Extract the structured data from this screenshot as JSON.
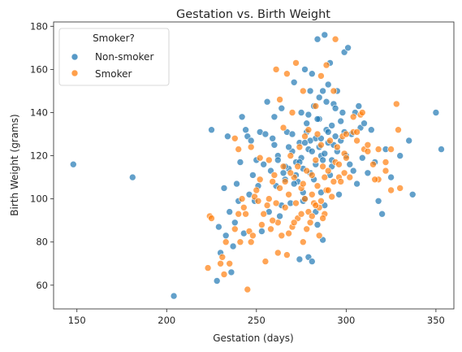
{
  "chart_data": {
    "type": "scatter",
    "title": "Gestation vs. Birth Weight",
    "xlabel": "Gestation (days)",
    "ylabel": "Birth Weight (grams)",
    "xlim": [
      137,
      360
    ],
    "ylim": [
      49,
      182
    ],
    "xticks": [
      150,
      200,
      250,
      300,
      350
    ],
    "yticks": [
      60,
      80,
      100,
      120,
      140,
      160,
      180
    ],
    "grid": false,
    "legend": {
      "title": "Smoker?",
      "placement": "top-left",
      "entries": [
        "Non-smoker",
        "Smoker"
      ]
    },
    "series": [
      {
        "name": "Non-smoker",
        "color": "#1f77b4",
        "points": [
          [
            148,
            116
          ],
          [
            181,
            110
          ],
          [
            204,
            55
          ],
          [
            225,
            132
          ],
          [
            228,
            62
          ],
          [
            229,
            87
          ],
          [
            230,
            75
          ],
          [
            232,
            105
          ],
          [
            233,
            83
          ],
          [
            234,
            129
          ],
          [
            235,
            94
          ],
          [
            236,
            66
          ],
          [
            237,
            78
          ],
          [
            238,
            89
          ],
          [
            239,
            107
          ],
          [
            240,
            99
          ],
          [
            241,
            117
          ],
          [
            242,
            138
          ],
          [
            243,
            84
          ],
          [
            244,
            132
          ],
          [
            245,
            129
          ],
          [
            246,
            102
          ],
          [
            247,
            127
          ],
          [
            248,
            111
          ],
          [
            249,
            99
          ],
          [
            250,
            118
          ],
          [
            251,
            106
          ],
          [
            252,
            131
          ],
          [
            253,
            85
          ],
          [
            254,
            116
          ],
          [
            255,
            130
          ],
          [
            256,
            145
          ],
          [
            257,
            94
          ],
          [
            258,
            113
          ],
          [
            259,
            128
          ],
          [
            260,
            138
          ],
          [
            261,
            106
          ],
          [
            262,
            120
          ],
          [
            263,
            92
          ],
          [
            264,
            142
          ],
          [
            265,
            112
          ],
          [
            266,
            109
          ],
          [
            267,
            131
          ],
          [
            268,
            114
          ],
          [
            269,
            98
          ],
          [
            270,
            122
          ],
          [
            271,
            154
          ],
          [
            272,
            117
          ],
          [
            273,
            108
          ],
          [
            274,
            126
          ],
          [
            275,
            140
          ],
          [
            276,
            103
          ],
          [
            277,
            160
          ],
          [
            278,
            135
          ],
          [
            279,
            123
          ],
          [
            280,
            112
          ],
          [
            281,
            158
          ],
          [
            282,
            143
          ],
          [
            283,
            128
          ],
          [
            284,
            174
          ],
          [
            285,
            137
          ],
          [
            286,
            120
          ],
          [
            287,
            150
          ],
          [
            288,
            176
          ],
          [
            289,
            132
          ],
          [
            290,
            126
          ],
          [
            291,
            163
          ],
          [
            292,
            115
          ],
          [
            293,
            144
          ],
          [
            294,
            129
          ],
          [
            295,
            150
          ],
          [
            296,
            102
          ],
          [
            297,
            127
          ],
          [
            298,
            140
          ],
          [
            299,
            168
          ],
          [
            300,
            120
          ],
          [
            301,
            170
          ],
          [
            302,
            116
          ],
          [
            303,
            130
          ],
          [
            304,
            113
          ],
          [
            305,
            140
          ],
          [
            306,
            107
          ],
          [
            307,
            143
          ],
          [
            308,
            133
          ],
          [
            309,
            119
          ],
          [
            310,
            135
          ],
          [
            312,
            112
          ],
          [
            314,
            132
          ],
          [
            316,
            117
          ],
          [
            318,
            99
          ],
          [
            320,
            93
          ],
          [
            322,
            123
          ],
          [
            325,
            110
          ],
          [
            330,
            120
          ],
          [
            335,
            127
          ],
          [
            337,
            102
          ],
          [
            350,
            140
          ],
          [
            353,
            123
          ],
          [
            275,
            119
          ],
          [
            280,
            127
          ],
          [
            285,
            124
          ],
          [
            290,
            131
          ],
          [
            283,
            116
          ],
          [
            278,
            131
          ],
          [
            287,
            118
          ],
          [
            292,
            134
          ],
          [
            276,
            114
          ],
          [
            284,
            137
          ],
          [
            288,
            121
          ],
          [
            282,
            109
          ],
          [
            279,
            139
          ],
          [
            286,
            128
          ],
          [
            291,
            111
          ],
          [
            277,
            126
          ],
          [
            289,
            145
          ],
          [
            281,
            122
          ],
          [
            274,
            117
          ],
          [
            293,
            125
          ],
          [
            270,
            130
          ],
          [
            295,
            122
          ],
          [
            272,
            111
          ],
          [
            297,
            136
          ],
          [
            268,
            124
          ],
          [
            299,
            131
          ],
          [
            266,
            115
          ],
          [
            285,
            147
          ],
          [
            280,
            150
          ],
          [
            290,
            153
          ],
          [
            276,
            99
          ],
          [
            286,
            103
          ],
          [
            279,
            73
          ],
          [
            281,
            71
          ],
          [
            287,
            81
          ],
          [
            283,
            94
          ],
          [
            274,
            72
          ],
          [
            277,
            100
          ],
          [
            292,
            118
          ],
          [
            294,
            142
          ],
          [
            271,
            107
          ],
          [
            264,
            97
          ],
          [
            262,
            118
          ],
          [
            260,
            125
          ],
          [
            284,
            88
          ],
          [
            288,
            97
          ]
        ]
      },
      {
        "name": "Smoker",
        "color": "#ff7f0e",
        "points": [
          [
            223,
            68
          ],
          [
            224,
            92
          ],
          [
            225,
            91
          ],
          [
            230,
            70
          ],
          [
            231,
            73
          ],
          [
            232,
            65
          ],
          [
            233,
            80
          ],
          [
            235,
            70
          ],
          [
            238,
            86
          ],
          [
            240,
            93
          ],
          [
            241,
            80
          ],
          [
            242,
            100
          ],
          [
            243,
            96
          ],
          [
            245,
            58
          ],
          [
            246,
            85
          ],
          [
            247,
            80
          ],
          [
            248,
            83
          ],
          [
            249,
            101
          ],
          [
            250,
            104
          ],
          [
            251,
            99
          ],
          [
            252,
            109
          ],
          [
            253,
            88
          ],
          [
            254,
            93
          ],
          [
            255,
            71
          ],
          [
            256,
            97
          ],
          [
            257,
            100
          ],
          [
            258,
            86
          ],
          [
            259,
            108
          ],
          [
            260,
            111
          ],
          [
            261,
            98
          ],
          [
            262,
            89
          ],
          [
            263,
            105
          ],
          [
            264,
            83
          ],
          [
            265,
            115
          ],
          [
            266,
            96
          ],
          [
            267,
            74
          ],
          [
            268,
            102
          ],
          [
            269,
            120
          ],
          [
            270,
            87
          ],
          [
            271,
            110
          ],
          [
            272,
            98
          ],
          [
            273,
            91
          ],
          [
            274,
            124
          ],
          [
            275,
            105
          ],
          [
            276,
            80
          ],
          [
            277,
            100
          ],
          [
            278,
            113
          ],
          [
            279,
            94
          ],
          [
            280,
            89
          ],
          [
            281,
            111
          ],
          [
            282,
            98
          ],
          [
            283,
            118
          ],
          [
            284,
            106
          ],
          [
            285,
            83
          ],
          [
            286,
            99
          ],
          [
            287,
            115
          ],
          [
            288,
            93
          ],
          [
            289,
            104
          ],
          [
            290,
            113
          ],
          [
            291,
            127
          ],
          [
            292,
            101
          ],
          [
            293,
            150
          ],
          [
            294,
            117
          ],
          [
            295,
            124
          ],
          [
            296,
            110
          ],
          [
            297,
            108
          ],
          [
            298,
            129
          ],
          [
            299,
            121
          ],
          [
            300,
            130
          ],
          [
            302,
            110
          ],
          [
            304,
            131
          ],
          [
            306,
            127
          ],
          [
            308,
            139
          ],
          [
            310,
            123
          ],
          [
            312,
            122
          ],
          [
            315,
            116
          ],
          [
            318,
            109
          ],
          [
            322,
            113
          ],
          [
            325,
            123
          ],
          [
            328,
            144
          ],
          [
            329,
            132
          ],
          [
            330,
            105
          ],
          [
            261,
            160
          ],
          [
            267,
            158
          ],
          [
            272,
            163
          ],
          [
            276,
            150
          ],
          [
            286,
            157
          ],
          [
            289,
            162
          ],
          [
            294,
            174
          ],
          [
            283,
            143
          ],
          [
            279,
            132
          ],
          [
            270,
            140
          ],
          [
            265,
            133
          ],
          [
            263,
            146
          ],
          [
            257,
            118
          ],
          [
            252,
            119
          ],
          [
            247,
            124
          ],
          [
            244,
            93
          ],
          [
            240,
            123
          ],
          [
            238,
            128
          ],
          [
            286,
            125
          ],
          [
            284,
            130
          ],
          [
            277,
            129
          ],
          [
            273,
            115
          ],
          [
            269,
            112
          ],
          [
            266,
            108
          ],
          [
            281,
            102
          ],
          [
            288,
            110
          ],
          [
            293,
            108
          ],
          [
            299,
            112
          ],
          [
            304,
            138
          ],
          [
            309,
            140
          ],
          [
            312,
            125
          ],
          [
            316,
            109
          ],
          [
            318,
            123
          ],
          [
            322,
            117
          ],
          [
            325,
            104
          ],
          [
            259,
            90
          ],
          [
            262,
            75
          ],
          [
            268,
            84
          ],
          [
            271,
            89
          ],
          [
            275,
            93
          ],
          [
            278,
            86
          ],
          [
            281,
            92
          ],
          [
            285,
            96
          ],
          [
            287,
            91
          ],
          [
            276,
            107
          ],
          [
            283,
            97
          ],
          [
            290,
            104
          ],
          [
            296,
            116
          ],
          [
            300,
            119
          ],
          [
            306,
            131
          ]
        ]
      }
    ]
  }
}
